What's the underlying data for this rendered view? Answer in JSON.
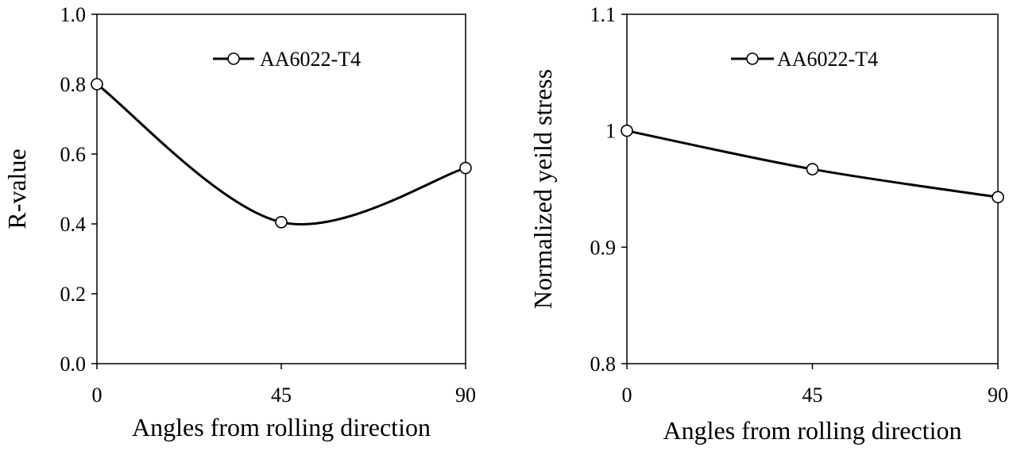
{
  "chart_data": [
    {
      "type": "line",
      "smooth": true,
      "marker": "open-circle",
      "x": [
        0,
        45,
        90
      ],
      "series": [
        {
          "name": "AA6022-T4",
          "values": [
            0.8,
            0.405,
            0.56
          ]
        }
      ],
      "xlabel": "Angles from rolling direction",
      "ylabel": "R-value",
      "xlim": [
        0,
        90
      ],
      "ylim": [
        0.0,
        1.0
      ],
      "xticks": [
        "0",
        "45",
        "90"
      ],
      "yticks": [
        "0.0",
        "0.2",
        "0.4",
        "0.6",
        "0.8",
        "1.0"
      ],
      "legend_position": "top-right",
      "grid": false
    },
    {
      "type": "line",
      "smooth": true,
      "marker": "open-circle",
      "x": [
        0,
        45,
        90
      ],
      "series": [
        {
          "name": "AA6022-T4",
          "values": [
            1.0,
            0.967,
            0.943
          ]
        }
      ],
      "xlabel": "Angles from rolling direction",
      "ylabel": "Normalized yeild stress",
      "xlim": [
        0,
        90
      ],
      "ylim": [
        0.8,
        1.1
      ],
      "xticks": [
        "0",
        "45",
        "90"
      ],
      "yticks": [
        "0.8",
        "0.9",
        "1",
        "1.1"
      ],
      "legend_position": "top-right",
      "grid": false
    }
  ]
}
